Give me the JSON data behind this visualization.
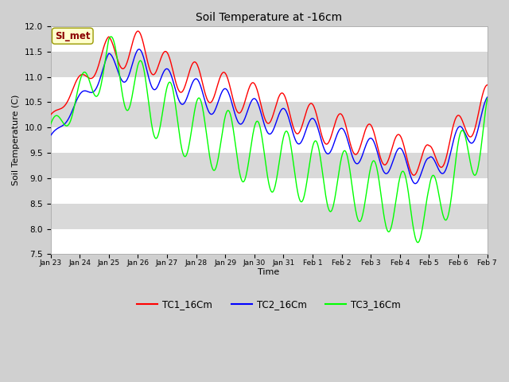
{
  "title": "Soil Temperature at -16cm",
  "xlabel": "Time",
  "ylabel": "Soil Temperature (C)",
  "ylim": [
    7.5,
    12.0
  ],
  "yticks": [
    7.5,
    8.0,
    8.5,
    9.0,
    9.5,
    10.0,
    10.5,
    11.0,
    11.5,
    12.0
  ],
  "x_tick_labels": [
    "Jan 23",
    "Jan 24",
    "Jan 25",
    "Jan 26",
    "Jan 27",
    "Jan 28",
    "Jan 29",
    "Jan 30",
    "Jan 31",
    "Feb 1",
    "Feb 2",
    "Feb 3",
    "Feb 4",
    "Feb 5",
    "Feb 6",
    "Feb 7"
  ],
  "line_colors": [
    "red",
    "blue",
    "lime"
  ],
  "legend_labels": [
    "TC1_16Cm",
    "TC2_16Cm",
    "TC3_16Cm"
  ],
  "annotation_text": "SI_met",
  "bg_color": "#e8e8e8",
  "grid_color": "white",
  "n_points": 720
}
